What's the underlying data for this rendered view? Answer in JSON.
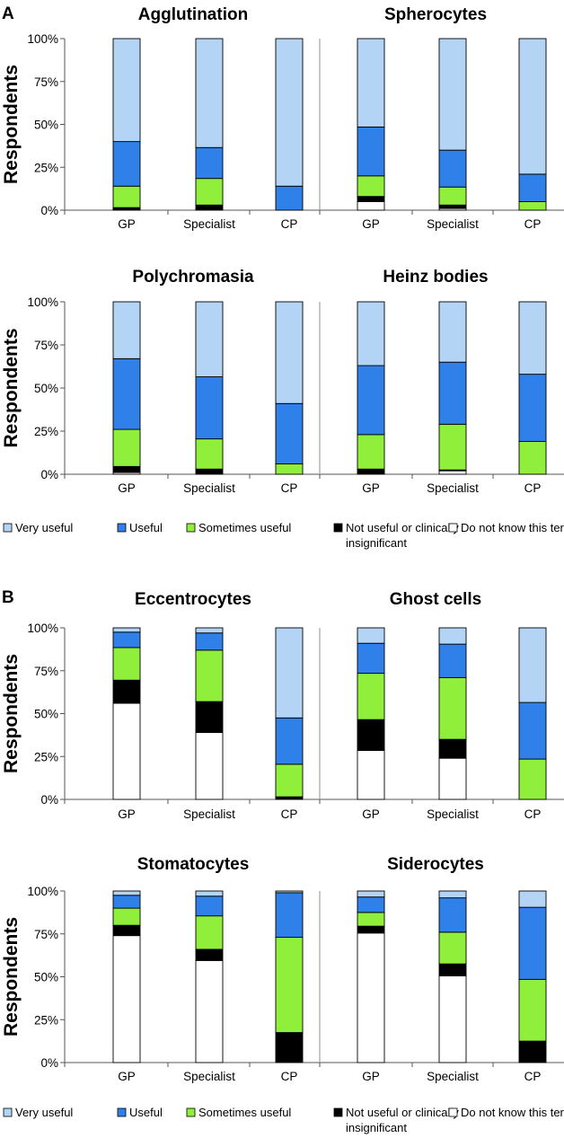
{
  "colors": {
    "very_useful": "#B3D4F5",
    "useful": "#2F80E8",
    "sometimes_useful": "#8FEF3A",
    "not_useful": "#000000",
    "do_not_know": "#FFFFFF",
    "frame": "#000000",
    "divider": "#9aa3a8"
  },
  "legend": {
    "items": [
      {
        "key": "very_useful",
        "label": "Very useful"
      },
      {
        "key": "useful",
        "label": "Useful"
      },
      {
        "key": "sometimes_useful",
        "label": "Sometimes useful"
      },
      {
        "key": "not_useful",
        "label": "Not useful or clinically",
        "label2": "insignificant"
      },
      {
        "key": "do_not_know",
        "label": "Do not know this term"
      }
    ]
  },
  "panels": [
    {
      "letter": "A"
    },
    {
      "letter": "B"
    }
  ],
  "chart_data": [
    {
      "type": "bar",
      "stacked": true,
      "panel": "A",
      "title": "Agglutination",
      "ylabel": "Respondents",
      "categories": [
        "GP",
        "Specialist",
        "CP"
      ],
      "yticks": [
        "0%",
        "25%",
        "50%",
        "75%",
        "100%"
      ],
      "ylim": [
        0,
        100
      ],
      "series": [
        {
          "name": "Do not know this term",
          "values": [
            0.5,
            0.5,
            0
          ]
        },
        {
          "name": "Not useful or clinically insignificant",
          "values": [
            1,
            2.5,
            0
          ]
        },
        {
          "name": "Sometimes useful",
          "values": [
            12.5,
            15.5,
            0
          ]
        },
        {
          "name": "Useful",
          "values": [
            26,
            18,
            14
          ]
        },
        {
          "name": "Very useful",
          "values": [
            60,
            63.5,
            86
          ]
        }
      ]
    },
    {
      "type": "bar",
      "stacked": true,
      "panel": "A",
      "title": "Spherocytes",
      "ylabel": "Respondents",
      "categories": [
        "GP",
        "Specialist",
        "CP"
      ],
      "yticks": [
        "0%",
        "25%",
        "50%",
        "75%",
        "100%"
      ],
      "ylim": [
        0,
        100
      ],
      "series": [
        {
          "name": "Do not know this term",
          "values": [
            5,
            1,
            0
          ]
        },
        {
          "name": "Not useful or clinically insignificant",
          "values": [
            3,
            2,
            0
          ]
        },
        {
          "name": "Sometimes useful",
          "values": [
            12,
            10.5,
            5
          ]
        },
        {
          "name": "Useful",
          "values": [
            28.5,
            21.5,
            16
          ]
        },
        {
          "name": "Very useful",
          "values": [
            51.5,
            65,
            79
          ]
        }
      ]
    },
    {
      "type": "bar",
      "stacked": true,
      "panel": "A",
      "title": "Polychromasia",
      "ylabel": "Respondents",
      "categories": [
        "GP",
        "Specialist",
        "CP"
      ],
      "yticks": [
        "0%",
        "25%",
        "50%",
        "75%",
        "100%"
      ],
      "ylim": [
        0,
        100
      ],
      "series": [
        {
          "name": "Do not know this term",
          "values": [
            1,
            0.5,
            0
          ]
        },
        {
          "name": "Not useful or clinically insignificant",
          "values": [
            3.5,
            2.5,
            0
          ]
        },
        {
          "name": "Sometimes useful",
          "values": [
            21.5,
            17.5,
            6
          ]
        },
        {
          "name": "Useful",
          "values": [
            41,
            36,
            35
          ]
        },
        {
          "name": "Very useful",
          "values": [
            33,
            43.5,
            59
          ]
        }
      ]
    },
    {
      "type": "bar",
      "stacked": true,
      "panel": "A",
      "title": "Heinz bodies",
      "ylabel": "Respondents",
      "categories": [
        "GP",
        "Specialist",
        "CP"
      ],
      "yticks": [
        "0%",
        "25%",
        "50%",
        "75%",
        "100%"
      ],
      "ylim": [
        0,
        100
      ],
      "series": [
        {
          "name": "Do not know this term",
          "values": [
            0.5,
            2,
            0
          ]
        },
        {
          "name": "Not useful or clinically insignificant",
          "values": [
            2.5,
            0.5,
            0
          ]
        },
        {
          "name": "Sometimes useful",
          "values": [
            20,
            26.5,
            19
          ]
        },
        {
          "name": "Useful",
          "values": [
            40,
            36,
            39
          ]
        },
        {
          "name": "Very useful",
          "values": [
            37,
            35,
            42
          ]
        }
      ]
    },
    {
      "type": "bar",
      "stacked": true,
      "panel": "B",
      "title": "Eccentrocytes",
      "ylabel": "Respondents",
      "categories": [
        "GP",
        "Specialist",
        "CP"
      ],
      "yticks": [
        "0%",
        "25%",
        "50%",
        "75%",
        "100%"
      ],
      "ylim": [
        0,
        100
      ],
      "series": [
        {
          "name": "Do not know this term",
          "values": [
            56,
            39,
            0
          ]
        },
        {
          "name": "Not useful or clinically insignificant",
          "values": [
            13.5,
            18,
            1.5
          ]
        },
        {
          "name": "Sometimes useful",
          "values": [
            19,
            30,
            19
          ]
        },
        {
          "name": "Useful",
          "values": [
            9,
            10,
            27
          ]
        },
        {
          "name": "Very useful",
          "values": [
            2.5,
            3,
            52.5
          ]
        }
      ]
    },
    {
      "type": "bar",
      "stacked": true,
      "panel": "B",
      "title": "Ghost cells",
      "ylabel": "Respondents",
      "categories": [
        "GP",
        "Specialist",
        "CP"
      ],
      "yticks": [
        "0%",
        "25%",
        "50%",
        "75%",
        "100%"
      ],
      "ylim": [
        0,
        100
      ],
      "series": [
        {
          "name": "Do not know this term",
          "values": [
            28.5,
            24,
            0
          ]
        },
        {
          "name": "Not useful or clinically insignificant",
          "values": [
            18,
            11,
            0
          ]
        },
        {
          "name": "Sometimes useful",
          "values": [
            27,
            36,
            23.5
          ]
        },
        {
          "name": "Useful",
          "values": [
            17.5,
            19.5,
            33
          ]
        },
        {
          "name": "Very useful",
          "values": [
            9,
            9.5,
            43.5
          ]
        }
      ]
    },
    {
      "type": "bar",
      "stacked": true,
      "panel": "B",
      "title": "Stomatocytes",
      "ylabel": "Respondents",
      "categories": [
        "GP",
        "Specialist",
        "CP"
      ],
      "yticks": [
        "0%",
        "25%",
        "50%",
        "75%",
        "100%"
      ],
      "ylim": [
        0,
        100
      ],
      "series": [
        {
          "name": "Do not know this term",
          "values": [
            74,
            59.5,
            0
          ]
        },
        {
          "name": "Not useful or clinically insignificant",
          "values": [
            6,
            6.5,
            17.5
          ]
        },
        {
          "name": "Sometimes useful",
          "values": [
            10,
            19.5,
            55.5
          ]
        },
        {
          "name": "Useful",
          "values": [
            7.5,
            11.5,
            26
          ]
        },
        {
          "name": "Very useful",
          "values": [
            2.5,
            3,
            1
          ]
        }
      ]
    },
    {
      "type": "bar",
      "stacked": true,
      "panel": "B",
      "title": "Siderocytes",
      "ylabel": "Respondents",
      "categories": [
        "GP",
        "Specialist",
        "CP"
      ],
      "yticks": [
        "0%",
        "25%",
        "50%",
        "75%",
        "100%"
      ],
      "ylim": [
        0,
        100
      ],
      "series": [
        {
          "name": "Do not know this term",
          "values": [
            75.5,
            50.5,
            0
          ]
        },
        {
          "name": "Not useful or clinically insignificant",
          "values": [
            4,
            7,
            12.5
          ]
        },
        {
          "name": "Sometimes useful",
          "values": [
            8,
            18.5,
            36
          ]
        },
        {
          "name": "Useful",
          "values": [
            9,
            20,
            42
          ]
        },
        {
          "name": "Very useful",
          "values": [
            3.5,
            4,
            9.5
          ]
        }
      ]
    }
  ]
}
